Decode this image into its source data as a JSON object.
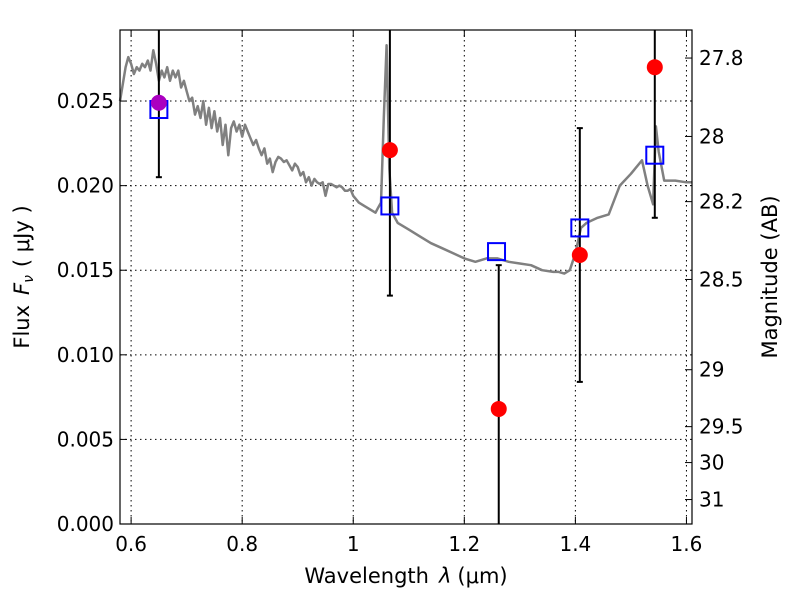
{
  "chart_data": {
    "type": "scatter",
    "xlabel_text": "Wavelength",
    "xlabel_var": "λ",
    "xlabel_unit": "(μm)",
    "ylabel_text": "Flux",
    "ylabel_var": "F",
    "ylabel_sub": "ν",
    "ylabel_unit": "( μJy )",
    "y2label": "Magnitude (AB)",
    "xlim": [
      0.58,
      1.61
    ],
    "ylim": [
      0.0,
      0.0292
    ],
    "xticks": [
      {
        "value": 0.6,
        "label": "0.6"
      },
      {
        "value": 0.8,
        "label": "0.8"
      },
      {
        "value": 1.0,
        "label": "1"
      },
      {
        "value": 1.2,
        "label": "1.2"
      },
      {
        "value": 1.4,
        "label": "1.4"
      },
      {
        "value": 1.6,
        "label": "1.6"
      }
    ],
    "yticks": [
      {
        "value": 0.0,
        "label": "0.000"
      },
      {
        "value": 0.005,
        "label": "0.005"
      },
      {
        "value": 0.01,
        "label": "0.010"
      },
      {
        "value": 0.015,
        "label": "0.015"
      },
      {
        "value": 0.02,
        "label": "0.020"
      },
      {
        "value": 0.025,
        "label": "0.025"
      }
    ],
    "y2ticks": [
      {
        "mag": 27.8,
        "label": "27.8"
      },
      {
        "mag": 28.0,
        "label": "28"
      },
      {
        "mag": 28.2,
        "label": "28.2"
      },
      {
        "mag": 28.5,
        "label": "28.5"
      },
      {
        "mag": 29.0,
        "label": "29"
      },
      {
        "mag": 29.5,
        "label": "29.5"
      },
      {
        "mag": 30.0,
        "label": "30"
      },
      {
        "mag": 31.0,
        "label": "31"
      }
    ],
    "grid": true,
    "series": [
      {
        "name": "template-spectrum",
        "kind": "line",
        "color": "#808080",
        "x": [
          0.58,
          0.59,
          0.595,
          0.6,
          0.605,
          0.61,
          0.615,
          0.62,
          0.625,
          0.63,
          0.635,
          0.64,
          0.645,
          0.65,
          0.655,
          0.66,
          0.665,
          0.67,
          0.675,
          0.68,
          0.685,
          0.69,
          0.695,
          0.7,
          0.705,
          0.71,
          0.715,
          0.72,
          0.725,
          0.73,
          0.735,
          0.74,
          0.745,
          0.75,
          0.755,
          0.76,
          0.765,
          0.77,
          0.775,
          0.78,
          0.785,
          0.79,
          0.795,
          0.8,
          0.805,
          0.81,
          0.815,
          0.82,
          0.825,
          0.83,
          0.835,
          0.84,
          0.845,
          0.85,
          0.855,
          0.86,
          0.865,
          0.87,
          0.875,
          0.88,
          0.885,
          0.89,
          0.895,
          0.9,
          0.905,
          0.91,
          0.915,
          0.92,
          0.925,
          0.93,
          0.935,
          0.94,
          0.945,
          0.95,
          0.955,
          0.96,
          0.965,
          0.97,
          0.975,
          0.98,
          0.985,
          0.99,
          0.995,
          1.0,
          1.01,
          1.02,
          1.03,
          1.04,
          1.045,
          1.05,
          1.055,
          1.06,
          1.065,
          1.07,
          1.08,
          1.1,
          1.12,
          1.14,
          1.16,
          1.18,
          1.2,
          1.22,
          1.24,
          1.26,
          1.28,
          1.3,
          1.32,
          1.34,
          1.36,
          1.37,
          1.38,
          1.39,
          1.4,
          1.41,
          1.42,
          1.44,
          1.46,
          1.48,
          1.5,
          1.52,
          1.53,
          1.54,
          1.545,
          1.55,
          1.56,
          1.58,
          1.6,
          1.61
        ],
        "y": [
          0.025,
          0.027,
          0.0276,
          0.0272,
          0.0266,
          0.027,
          0.0268,
          0.0272,
          0.027,
          0.0274,
          0.0268,
          0.028,
          0.0272,
          0.0262,
          0.0268,
          0.0264,
          0.027,
          0.0262,
          0.0268,
          0.0264,
          0.0268,
          0.0258,
          0.0262,
          0.0256,
          0.025,
          0.0252,
          0.0242,
          0.0247,
          0.024,
          0.025,
          0.0236,
          0.0246,
          0.0234,
          0.0244,
          0.0232,
          0.024,
          0.0224,
          0.0236,
          0.0218,
          0.0234,
          0.0238,
          0.0232,
          0.0236,
          0.0229,
          0.0236,
          0.0232,
          0.0228,
          0.0224,
          0.0227,
          0.0222,
          0.0218,
          0.0222,
          0.0213,
          0.0216,
          0.0208,
          0.0214,
          0.0217,
          0.0216,
          0.0214,
          0.0215,
          0.0212,
          0.0209,
          0.0213,
          0.0211,
          0.0206,
          0.0208,
          0.0202,
          0.0205,
          0.02,
          0.0204,
          0.0202,
          0.0201,
          0.0202,
          0.0194,
          0.0201,
          0.0201,
          0.02,
          0.0199,
          0.02,
          0.0199,
          0.0197,
          0.0197,
          0.0198,
          0.0194,
          0.019,
          0.0188,
          0.0186,
          0.0184,
          0.0187,
          0.019,
          0.024,
          0.0283,
          0.021,
          0.0184,
          0.0178,
          0.0174,
          0.017,
          0.0166,
          0.0163,
          0.016,
          0.0157,
          0.0155,
          0.0157,
          0.0157,
          0.0155,
          0.0154,
          0.0153,
          0.015,
          0.0149,
          0.0149,
          0.0148,
          0.015,
          0.016,
          0.0175,
          0.0178,
          0.0181,
          0.0183,
          0.02,
          0.0207,
          0.0215,
          0.02,
          0.0189,
          0.0235,
          0.022,
          0.0203,
          0.0203,
          0.0202,
          0.0202
        ]
      },
      {
        "name": "model-photometry",
        "kind": "markers",
        "marker": "open-square",
        "color": "#0000ff",
        "x": [
          0.65,
          1.066,
          1.258,
          1.408,
          1.543
        ],
        "y": [
          0.0245,
          0.0188,
          0.0161,
          0.0175,
          0.0218
        ]
      },
      {
        "name": "observed-photometry",
        "kind": "markers-with-errorbars",
        "marker": "filled-circle",
        "color": "#ff0000",
        "first_point_color": "#aa00c0",
        "errorbar_color": "#000000",
        "x": [
          0.65,
          1.066,
          1.262,
          1.408,
          1.543
        ],
        "y": [
          0.0249,
          0.0221,
          0.0068,
          0.0159,
          0.027
        ],
        "yerr_low": [
          0.0044,
          0.0086,
          0.0068,
          0.0075,
          0.0089
        ],
        "yerr_high": [
          0.005,
          0.0071,
          0.0085,
          0.0075,
          0.003
        ]
      }
    ]
  }
}
